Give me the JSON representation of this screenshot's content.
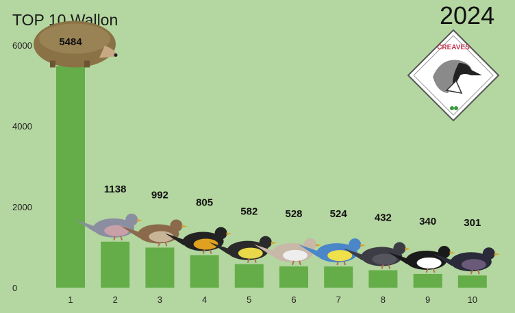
{
  "title": "TOP 10 Wallon",
  "year": "2024",
  "logo_text": "CREAVES",
  "chart_data": {
    "type": "bar",
    "title": "TOP 10 Wallon",
    "categories": [
      "1",
      "2",
      "3",
      "4",
      "5",
      "6",
      "7",
      "8",
      "9",
      "10"
    ],
    "values": [
      5484,
      1138,
      992,
      805,
      582,
      528,
      524,
      432,
      340,
      301
    ],
    "species_icons": [
      "hedgehog-icon",
      "wood-pigeon-icon",
      "house-sparrow-icon",
      "blackbird-icon",
      "great-tit-icon",
      "collared-dove-icon",
      "blue-tit-icon",
      "swift-icon",
      "magpie-icon",
      "starling-icon"
    ],
    "yticks": [
      0,
      2000,
      4000,
      6000
    ],
    "ylim": [
      0,
      6000
    ],
    "bar_color": "#64ad48",
    "background_color": "#b4d6a0",
    "grid": false,
    "legend": "none"
  }
}
